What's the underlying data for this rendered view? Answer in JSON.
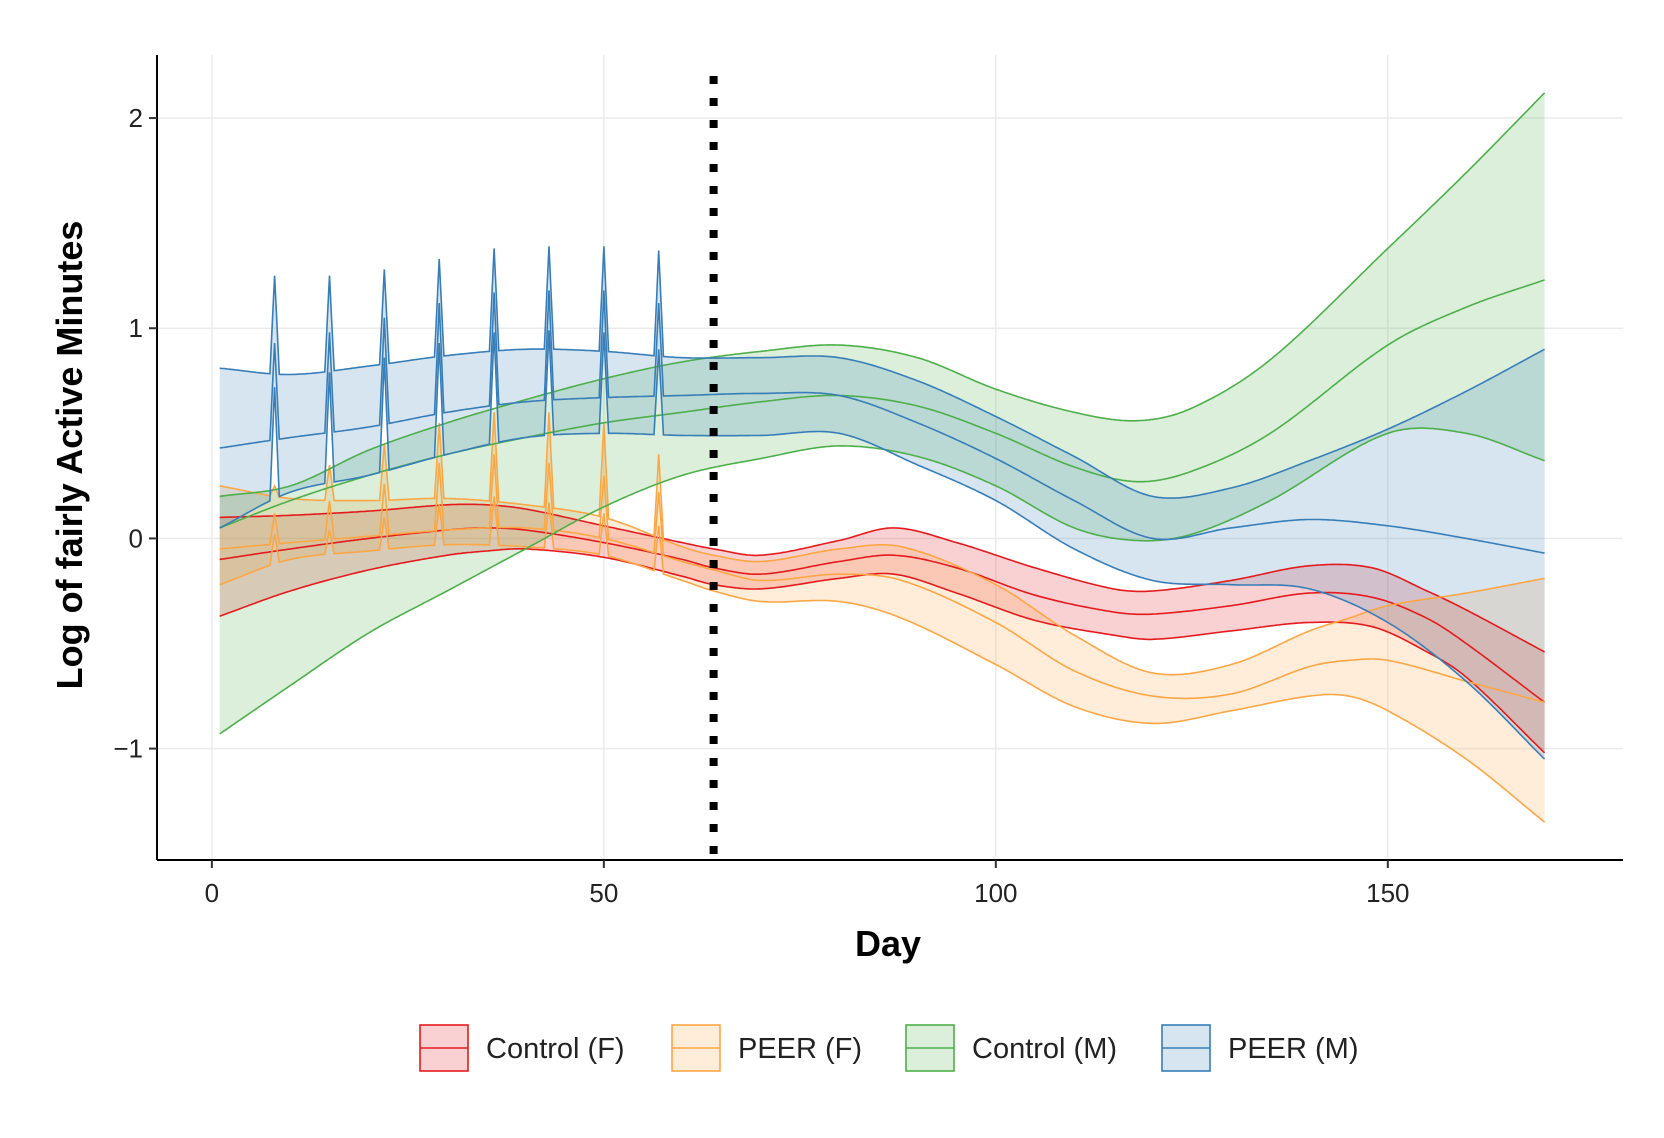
{
  "chart_data": {
    "type": "line",
    "title": "",
    "xlabel": "Day",
    "ylabel": "Log of fairly Active Minutes",
    "xlim": [
      -7,
      180
    ],
    "ylim": [
      -1.53,
      2.3
    ],
    "xticks": [
      0,
      50,
      100,
      150
    ],
    "yticks": [
      -1,
      0,
      1,
      2
    ],
    "xtick_labels": [
      "0",
      "50",
      "100",
      "150"
    ],
    "ytick_labels": [
      "−1",
      "0",
      "1",
      "2"
    ],
    "grid": true,
    "legend_position": "bottom",
    "vline": {
      "x": 64,
      "style": "dotted"
    },
    "series": [
      {
        "name": "Control (F)",
        "color": "#E41A1C",
        "x": [
          1,
          10,
          20,
          30,
          35,
          40,
          50,
          60,
          64,
          70,
          80,
          87,
          95,
          105,
          115,
          120,
          130,
          140,
          148,
          155,
          160,
          170
        ],
        "mean": [
          -0.1,
          -0.05,
          0.0,
          0.04,
          0.05,
          0.04,
          -0.02,
          -0.1,
          -0.14,
          -0.17,
          -0.11,
          -0.08,
          -0.14,
          -0.27,
          -0.35,
          -0.36,
          -0.32,
          -0.26,
          -0.28,
          -0.38,
          -0.5,
          -0.78
        ],
        "upper": [
          0.1,
          0.11,
          0.13,
          0.16,
          0.16,
          0.14,
          0.06,
          -0.02,
          -0.05,
          -0.08,
          -0.01,
          0.05,
          -0.02,
          -0.14,
          -0.24,
          -0.25,
          -0.2,
          -0.13,
          -0.14,
          -0.25,
          -0.34,
          -0.54
        ],
        "lower": [
          -0.37,
          -0.25,
          -0.15,
          -0.08,
          -0.06,
          -0.05,
          -0.09,
          -0.18,
          -0.22,
          -0.24,
          -0.19,
          -0.17,
          -0.26,
          -0.39,
          -0.46,
          -0.48,
          -0.44,
          -0.4,
          -0.42,
          -0.54,
          -0.66,
          -1.02
        ]
      },
      {
        "name": "PEER (F)",
        "color": "#FDA644",
        "x": [
          1,
          10,
          20,
          30,
          40,
          50,
          60,
          64,
          70,
          80,
          88,
          100,
          110,
          120,
          130,
          140,
          145,
          150,
          160,
          170
        ],
        "mean": [
          -0.05,
          -0.02,
          0.01,
          0.04,
          0.05,
          0.0,
          -0.11,
          -0.15,
          -0.2,
          -0.17,
          -0.2,
          -0.4,
          -0.63,
          -0.75,
          -0.74,
          -0.61,
          -0.58,
          -0.58,
          -0.68,
          -0.78
        ],
        "upper": [
          0.25,
          0.19,
          0.18,
          0.19,
          0.16,
          0.1,
          -0.04,
          -0.08,
          -0.11,
          -0.05,
          -0.04,
          -0.22,
          -0.46,
          -0.64,
          -0.6,
          -0.44,
          -0.38,
          -0.32,
          -0.26,
          -0.19
        ],
        "lower": [
          -0.22,
          -0.1,
          -0.06,
          -0.03,
          -0.04,
          -0.08,
          -0.2,
          -0.25,
          -0.3,
          -0.3,
          -0.38,
          -0.6,
          -0.8,
          -0.88,
          -0.82,
          -0.75,
          -0.75,
          -0.82,
          -1.05,
          -1.35
        ],
        "spikes": {
          "days": [
            8,
            15,
            22,
            29,
            36,
            43,
            50,
            57
          ],
          "peak_upper": [
            0.25,
            0.35,
            0.45,
            0.55,
            0.6,
            0.6,
            0.55,
            0.4
          ],
          "peak_mean": [
            0.12,
            0.18,
            0.26,
            0.36,
            0.4,
            0.36,
            0.3,
            0.22
          ],
          "peak_lower": [
            0.02,
            0.04,
            0.1,
            0.16,
            0.2,
            0.17,
            0.12,
            0.06
          ]
        }
      },
      {
        "name": "Control (M)",
        "color": "#4DAF4A",
        "x": [
          1,
          10,
          20,
          30,
          40,
          50,
          60,
          70,
          80,
          90,
          100,
          110,
          118,
          125,
          135,
          150,
          160,
          170
        ],
        "mean": [
          0.05,
          0.18,
          0.3,
          0.4,
          0.48,
          0.55,
          0.6,
          0.65,
          0.68,
          0.63,
          0.5,
          0.34,
          0.27,
          0.32,
          0.5,
          0.92,
          1.1,
          1.23
        ],
        "upper": [
          0.2,
          0.25,
          0.42,
          0.55,
          0.66,
          0.76,
          0.84,
          0.89,
          0.92,
          0.86,
          0.71,
          0.6,
          0.56,
          0.62,
          0.85,
          1.38,
          1.74,
          2.12
        ],
        "lower": [
          -0.93,
          -0.7,
          -0.45,
          -0.25,
          -0.05,
          0.15,
          0.3,
          0.38,
          0.44,
          0.39,
          0.25,
          0.05,
          -0.01,
          0.02,
          0.18,
          0.5,
          0.5,
          0.37
        ]
      },
      {
        "name": "PEER (M)",
        "color": "#377EB8",
        "x": [
          1,
          10,
          20,
          30,
          40,
          50,
          60,
          70,
          80,
          90,
          100,
          110,
          120,
          130,
          140,
          150,
          160,
          170
        ],
        "mean": [
          0.43,
          0.48,
          0.53,
          0.6,
          0.65,
          0.67,
          0.68,
          0.69,
          0.68,
          0.55,
          0.38,
          0.18,
          0.0,
          0.05,
          0.09,
          0.06,
          0.0,
          -0.07
        ],
        "upper": [
          0.81,
          0.78,
          0.82,
          0.87,
          0.9,
          0.89,
          0.86,
          0.86,
          0.86,
          0.75,
          0.58,
          0.39,
          0.2,
          0.24,
          0.37,
          0.52,
          0.7,
          0.9
        ],
        "lower": [
          0.05,
          0.22,
          0.3,
          0.4,
          0.48,
          0.5,
          0.49,
          0.49,
          0.5,
          0.35,
          0.18,
          -0.05,
          -0.2,
          -0.22,
          -0.24,
          -0.4,
          -0.68,
          -1.05
        ],
        "spikes": {
          "days": [
            8,
            15,
            22,
            29,
            36,
            43,
            50,
            57
          ],
          "peak_upper": [
            1.25,
            1.25,
            1.28,
            1.33,
            1.38,
            1.39,
            1.39,
            1.37
          ],
          "peak_mean": [
            0.93,
            0.98,
            1.05,
            1.12,
            1.17,
            1.18,
            1.18,
            1.12
          ],
          "peak_lower": [
            0.72,
            0.79,
            0.86,
            0.93,
            0.98,
            0.99,
            0.98,
            0.9
          ]
        }
      }
    ]
  }
}
